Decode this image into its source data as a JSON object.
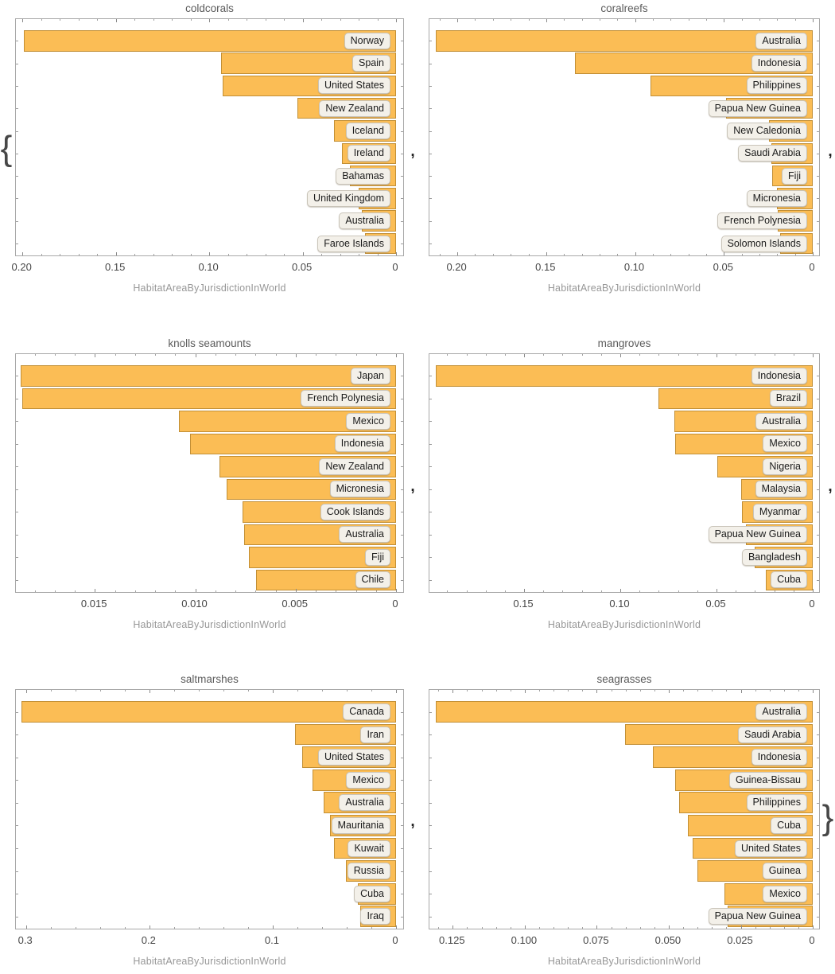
{
  "figure": {
    "kind": "list-of-bar-charts",
    "note": "six horizontal bar charts with reversed x-axes wrapped as a braced list"
  },
  "separators": {
    "open": "{",
    "comma": ",",
    "close": "}"
  },
  "colors": {
    "bar_fill": "#FBBD55",
    "bar_edge": "#C28F35",
    "label_bg": "#F3F0E9",
    "label_border": "#C9C4B9",
    "label_text": "#1B1B1B",
    "frame": "#A8A8A8",
    "tick": "#8A8A8A",
    "tick_label": "#474747",
    "axis_label_text": "#979797",
    "title_text": "#5B5B5B"
  },
  "chart_data": [
    {
      "type": "bar",
      "title": "coldcorals",
      "xlabel": "HabitatAreaByJurisdictionInWorld",
      "orientation": "horizontal",
      "axis_reversed": true,
      "categories": [
        "Norway",
        "Spain",
        "United States",
        "New Zealand",
        "Iceland",
        "Ireland",
        "Bahamas",
        "United Kingdom",
        "Australia",
        "Faroe Islands"
      ],
      "values": [
        0.1991,
        0.0936,
        0.0927,
        0.0528,
        0.0331,
        0.0288,
        0.0249,
        0.0202,
        0.0185,
        0.0167
      ],
      "xticks": {
        "labels": [
          "0.20",
          "0.15",
          "0.10",
          "0.05",
          "0"
        ],
        "values": [
          0.2,
          0.15,
          0.1,
          0.05,
          0
        ]
      },
      "minor_tick_step": 0.01,
      "xlim": [
        0,
        0.2035
      ]
    },
    {
      "type": "bar",
      "title": "coralreefs",
      "xlabel": "HabitatAreaByJurisdictionInWorld",
      "orientation": "horizontal",
      "axis_reversed": true,
      "categories": [
        "Australia",
        "Indonesia",
        "Philippines",
        "Papua New Guinea",
        "New Caledonia",
        "Saudi Arabia",
        "Fiji",
        "Micronesia",
        "French Polynesia",
        "Solomon Islands"
      ],
      "values": [
        0.2122,
        0.1336,
        0.0912,
        0.0487,
        0.0246,
        0.0231,
        0.0228,
        0.0201,
        0.0195,
        0.0183
      ],
      "xticks": {
        "labels": [
          "0.20",
          "0.15",
          "0.10",
          "0.05",
          "0"
        ],
        "values": [
          0.2,
          0.15,
          0.1,
          0.05,
          0
        ]
      },
      "minor_tick_step": 0.01,
      "xlim": [
        0,
        0.2157
      ]
    },
    {
      "type": "bar",
      "title": "knolls seamounts",
      "xlabel": "HabitatAreaByJurisdictionInWorld",
      "orientation": "horizontal",
      "axis_reversed": true,
      "categories": [
        "Japan",
        "French Polynesia",
        "Mexico",
        "Indonesia",
        "New Zealand",
        "Micronesia",
        "Cook Islands",
        "Australia",
        "Fiji",
        "Chile"
      ],
      "values": [
        0.0187,
        0.01862,
        0.0108,
        0.01027,
        0.00881,
        0.00844,
        0.00765,
        0.00758,
        0.00731,
        0.00698
      ],
      "xticks": {
        "labels": [
          "0.015",
          "0.010",
          "0.005",
          "0"
        ],
        "values": [
          0.015,
          0.01,
          0.005,
          0
        ]
      },
      "minor_tick_step": 0.001,
      "xlim": [
        0,
        0.01893
      ]
    },
    {
      "type": "bar",
      "title": "mangroves",
      "xlabel": "HabitatAreaByJurisdictionInWorld",
      "orientation": "horizontal",
      "axis_reversed": true,
      "categories": [
        "Indonesia",
        "Brazil",
        "Australia",
        "Mexico",
        "Nigeria",
        "Malaysia",
        "Myanmar",
        "Papua New Guinea",
        "Bangladesh",
        "Cuba"
      ],
      "values": [
        0.1957,
        0.0803,
        0.0718,
        0.0714,
        0.0497,
        0.0373,
        0.0369,
        0.0348,
        0.03,
        0.0245
      ],
      "xticks": {
        "labels": [
          "0.15",
          "0.10",
          "0.05",
          "0"
        ],
        "values": [
          0.15,
          0.1,
          0.05,
          0
        ]
      },
      "minor_tick_step": 0.01,
      "xlim": [
        0,
        0.1992
      ]
    },
    {
      "type": "bar",
      "title": "saltmarshes",
      "xlabel": "HabitatAreaByJurisdictionInWorld",
      "orientation": "horizontal",
      "axis_reversed": true,
      "categories": [
        "Canada",
        "Iran",
        "United States",
        "Mexico",
        "Australia",
        "Mauritania",
        "Kuwait",
        "Russia",
        "Cuba",
        "Iraq"
      ],
      "values": [
        0.3039,
        0.0817,
        0.0764,
        0.0677,
        0.0585,
        0.0538,
        0.0506,
        0.0409,
        0.0312,
        0.029
      ],
      "xticks": {
        "labels": [
          "0.3",
          "0.2",
          "0.1",
          "0"
        ],
        "values": [
          0.3,
          0.2,
          0.1,
          0
        ]
      },
      "minor_tick_step": 0.02,
      "xlim": [
        0,
        0.3082
      ]
    },
    {
      "type": "bar",
      "title": "seagrasses",
      "xlabel": "HabitatAreaByJurisdictionInWorld",
      "orientation": "horizontal",
      "axis_reversed": true,
      "categories": [
        "Australia",
        "Saudi Arabia",
        "Indonesia",
        "Guinea-Bissau",
        "Philippines",
        "Cuba",
        "United States",
        "Guinea",
        "Mexico",
        "Papua New Guinea"
      ],
      "values": [
        0.131,
        0.0652,
        0.0555,
        0.0478,
        0.0465,
        0.0434,
        0.0418,
        0.04,
        0.0306,
        0.0295
      ],
      "xticks": {
        "labels": [
          "0.125",
          "0.100",
          "0.075",
          "0.050",
          "0.025",
          "0"
        ],
        "values": [
          0.125,
          0.1,
          0.075,
          0.05,
          0.025,
          0
        ]
      },
      "minor_tick_step": 0.005,
      "xlim": [
        0,
        0.1331
      ]
    }
  ]
}
